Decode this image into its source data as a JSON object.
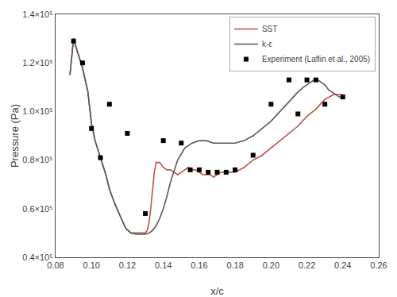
{
  "chart_data": {
    "type": "line",
    "xlabel": "x/c",
    "ylabel": "Pressure (Pa)",
    "xlim": [
      0.08,
      0.26
    ],
    "ylim": [
      40000,
      140000
    ],
    "xticks": [
      0.08,
      {
        "value": 0.1,
        "label": "0.10"
      },
      0.12,
      0.14,
      0.16,
      0.18,
      {
        "value": 0.2,
        "label": "0.20"
      },
      0.22,
      0.24,
      0.26
    ],
    "yticks": [
      {
        "value": 40000,
        "label": "0.4×10⁵"
      },
      {
        "value": 60000,
        "label": "0.6×10⁵"
      },
      {
        "value": 80000,
        "label": "0.8×10⁵"
      },
      {
        "value": 100000,
        "label": "1.0×10⁵"
      },
      {
        "value": 120000,
        "label": "1.2×10⁵"
      },
      {
        "value": 140000,
        "label": "1.4×10⁵"
      }
    ],
    "grid": false,
    "legend": "upper right",
    "series": [
      {
        "name": "SST",
        "type": "line",
        "line_style": "solid",
        "color": "#c0504d",
        "x": [
          0.088,
          0.09,
          0.092,
          0.095,
          0.098,
          0.1,
          0.102,
          0.105,
          0.108,
          0.11,
          0.113,
          0.116,
          0.119,
          0.122,
          0.125,
          0.128,
          0.13,
          0.131,
          0.132,
          0.133,
          0.134,
          0.135,
          0.136,
          0.138,
          0.14,
          0.142,
          0.144,
          0.146,
          0.148,
          0.15,
          0.152,
          0.154,
          0.156,
          0.158,
          0.16,
          0.162,
          0.164,
          0.166,
          0.168,
          0.17,
          0.172,
          0.174,
          0.176,
          0.178,
          0.18,
          0.185,
          0.19,
          0.195,
          0.2,
          0.205,
          0.21,
          0.215,
          0.22,
          0.225,
          0.23,
          0.235,
          0.24
        ],
        "values": [
          115000,
          130000,
          125000,
          118000,
          108000,
          95000,
          88000,
          81000,
          74000,
          68000,
          62000,
          57000,
          52000,
          50000,
          50000,
          50000,
          50000,
          51000,
          54000,
          60000,
          68000,
          75000,
          79000,
          79000,
          77000,
          76000,
          76000,
          75000,
          74000,
          75000,
          76000,
          77000,
          76000,
          76000,
          75000,
          74000,
          74000,
          74000,
          73000,
          74000,
          75000,
          75000,
          75000,
          75000,
          75000,
          77000,
          80000,
          82000,
          85000,
          88000,
          91000,
          94000,
          98000,
          101000,
          105000,
          107000,
          107000
        ]
      },
      {
        "name": "k-ε",
        "type": "line",
        "line_style": "solid",
        "color": "#595959",
        "x": [
          0.088,
          0.09,
          0.092,
          0.095,
          0.098,
          0.1,
          0.102,
          0.105,
          0.108,
          0.11,
          0.113,
          0.116,
          0.119,
          0.122,
          0.125,
          0.128,
          0.13,
          0.132,
          0.134,
          0.136,
          0.138,
          0.14,
          0.142,
          0.144,
          0.148,
          0.152,
          0.156,
          0.16,
          0.164,
          0.168,
          0.172,
          0.176,
          0.18,
          0.185,
          0.19,
          0.195,
          0.2,
          0.205,
          0.21,
          0.215,
          0.218,
          0.22,
          0.222,
          0.224,
          0.226,
          0.228,
          0.23,
          0.232,
          0.234,
          0.236,
          0.238,
          0.24
        ],
        "values": [
          115000,
          130000,
          125000,
          118000,
          108000,
          95000,
          88000,
          81000,
          74000,
          68000,
          62000,
          57000,
          52000,
          50000,
          49500,
          49500,
          49500,
          50000,
          51000,
          53000,
          56000,
          60000,
          65000,
          71000,
          80000,
          85000,
          87000,
          88000,
          88000,
          87000,
          87000,
          87000,
          87000,
          88000,
          90000,
          93000,
          96000,
          100000,
          104000,
          108000,
          110000,
          111000,
          112000,
          113000,
          113000,
          112000,
          111000,
          109000,
          108000,
          107000,
          106000,
          105500
        ]
      },
      {
        "name": "Experiment (Laflin et al., 2005)",
        "type": "scatter",
        "marker": "square",
        "color": "#000000",
        "x": [
          0.09,
          0.095,
          0.1,
          0.105,
          0.11,
          0.12,
          0.13,
          0.14,
          0.15,
          0.155,
          0.16,
          0.165,
          0.17,
          0.175,
          0.18,
          0.19,
          0.2,
          0.21,
          0.215,
          0.22,
          0.225,
          0.23,
          0.24
        ],
        "values": [
          129000,
          120000,
          93000,
          81000,
          103000,
          91000,
          58000,
          88000,
          87000,
          76000,
          76000,
          75000,
          75000,
          75000,
          76000,
          82000,
          103000,
          113000,
          99000,
          113000,
          113000,
          103000,
          106000
        ]
      }
    ]
  }
}
